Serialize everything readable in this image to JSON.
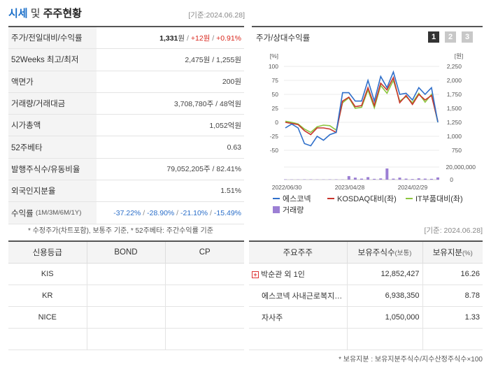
{
  "header": {
    "title_a": "시세",
    "title_b": " 및 ",
    "title_c": "주주현황",
    "date": "[기준:2024.06.28]"
  },
  "summary": {
    "rows": [
      {
        "label": "주가/전일대비/수익률",
        "price": "1,331",
        "won": "원",
        "sep": " / ",
        "change": "+12원",
        "pct": "+0.91%"
      },
      {
        "label": "52Weeks 최고/최저",
        "value": "2,475원 / 1,255원"
      },
      {
        "label": "액면가",
        "value": "200원"
      },
      {
        "label": "거래량/거래대금",
        "value": "3,708,780주 / 48억원"
      },
      {
        "label": "시가총액",
        "value": "1,052억원"
      },
      {
        "label": "52주베타",
        "value": "0.63"
      },
      {
        "label": "발행주식수/유동비율",
        "value": "79,052,205주 / 82.41%"
      },
      {
        "label": "외국인지분율",
        "value": "1.51%"
      },
      {
        "label": "수익률",
        "label_sub": "(1M/3M/6M/1Y)",
        "r1": "-37.22%",
        "r2": "-28.90%",
        "r3": "-21.10%",
        "r4": "-15.49%"
      }
    ],
    "footnote": "* 수정주가(차트포함), 보통주 기준, * 52주베타: 주간수익률 기준"
  },
  "chart_panel": {
    "title": "주가/상대수익률",
    "pages": [
      "1",
      "2",
      "3"
    ],
    "date": "[기준: 2024.06.28]"
  },
  "chart_data": {
    "type": "line",
    "left_unit": "[%]",
    "right_unit": "[원]",
    "left_ticks": [
      "100",
      "75",
      "50",
      "25",
      "0",
      "-25",
      "-50"
    ],
    "right_ticks": [
      "2,250",
      "2,000",
      "1,750",
      "1,500",
      "1,250",
      "1,000",
      "750"
    ],
    "volume_tick": "20,000,000",
    "volume_zero": "0",
    "x_labels": [
      "2022/06/30",
      "2023/04/28",
      "2024/02/29"
    ],
    "left_range": [
      -50,
      100
    ],
    "series": [
      {
        "name": "에스코넥",
        "color": "#2f6fca",
        "values": [
          -10,
          -3,
          -10,
          -38,
          -42,
          -25,
          -32,
          -22,
          -18,
          53,
          53,
          38,
          38,
          75,
          38,
          82,
          62,
          90,
          50,
          52,
          40,
          62,
          50,
          62,
          0
        ]
      },
      {
        "name": "KOSDAQ대비(좌)",
        "color": "#c8342c",
        "values": [
          0,
          -2,
          -4,
          -15,
          -22,
          -10,
          -10,
          -12,
          -18,
          38,
          45,
          28,
          30,
          62,
          30,
          70,
          58,
          80,
          35,
          48,
          32,
          50,
          40,
          48,
          2
        ]
      },
      {
        "name": "IT부품대비(좌)",
        "color": "#8cc63e",
        "values": [
          2,
          0,
          -3,
          -12,
          -18,
          -8,
          -5,
          -6,
          -14,
          35,
          44,
          25,
          27,
          58,
          26,
          66,
          52,
          75,
          38,
          46,
          35,
          52,
          36,
          50,
          0
        ]
      }
    ],
    "volume": {
      "name": "거래량",
      "color": "#9c7fd4",
      "values": [
        0.3,
        0.2,
        0.2,
        0.3,
        0.3,
        0.2,
        0.2,
        0.3,
        0.3,
        0.2,
        3.5,
        2.0,
        1.0,
        2.5,
        0.8,
        1.2,
        11.0,
        1.0,
        2.0,
        1.0,
        0.6,
        1.3,
        1.0,
        0.8,
        2.2
      ]
    },
    "legend": [
      "에스코넥",
      "KOSDAQ대비(좌)",
      "IT부품대비(좌)",
      "거래량"
    ]
  },
  "credit": {
    "headers": [
      "신용등급",
      "BOND",
      "CP"
    ],
    "rows": [
      {
        "agency": "KIS",
        "bond": "",
        "cp": ""
      },
      {
        "agency": "KR",
        "bond": "",
        "cp": ""
      },
      {
        "agency": "NICE",
        "bond": "",
        "cp": ""
      },
      {
        "agency": "",
        "bond": "",
        "cp": ""
      }
    ]
  },
  "holders": {
    "headers": [
      "주요주주",
      "보유주식수",
      "(보통)",
      "보유지분",
      "(%)"
    ],
    "rows": [
      {
        "name": "박순관 외 1인",
        "shares": "12,852,427",
        "pct": "16.26",
        "expand": "+"
      },
      {
        "name": "에스코넥 사내근로복지…",
        "shares": "6,938,350",
        "pct": "8.78"
      },
      {
        "name": "자사주",
        "shares": "1,050,000",
        "pct": "1.33"
      },
      {
        "name": "",
        "shares": "",
        "pct": ""
      }
    ],
    "footnote": "* 보유지분 : 보유지분주식수/지수산정주식수×100"
  }
}
